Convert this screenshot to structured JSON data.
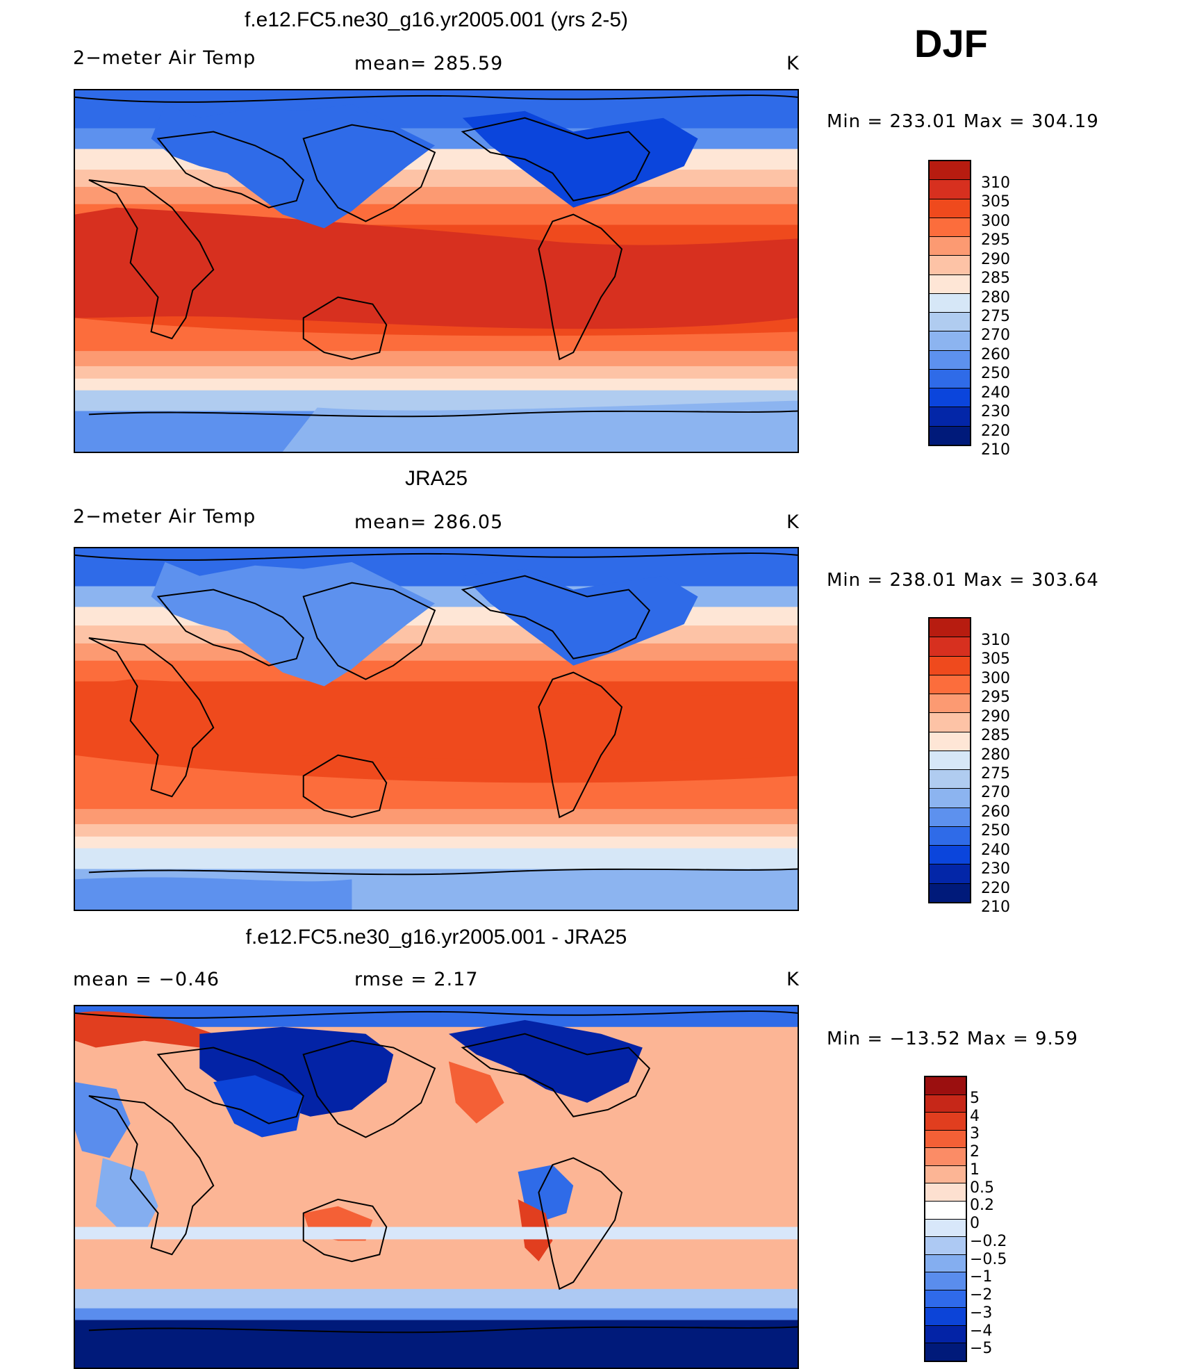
{
  "season": "DJF",
  "colors": {
    "temp_scale": [
      "#b71c10",
      "#d7301f",
      "#ef4a1d",
      "#fc6d3c",
      "#fc9a72",
      "#fdc3a6",
      "#fee6d6",
      "#d6e7f7",
      "#b0ccf0",
      "#8cb4f0",
      "#5d91ee",
      "#2f6be8",
      "#0b45dc",
      "#0326a8",
      "#001a7a"
    ],
    "diff_scale": [
      "#9b0f0f",
      "#c62718",
      "#e13e1f",
      "#f46036",
      "#fb8c66",
      "#fcb595",
      "#fde0d0",
      "#ffffff",
      "#d8e7fa",
      "#adc9f3",
      "#84aef0",
      "#5a8ded",
      "#2f6aea",
      "#0c44d8",
      "#0323a6",
      "#001a7a"
    ],
    "line": "#000000"
  },
  "panels": [
    {
      "title": "f.e12.FC5.ne30_g16.yr2005.001 (yrs 2-5)",
      "left_label": "2−meter Air Temp",
      "mid_label": "mean=  285.59",
      "units": "K",
      "minmax": "Min  =  233.01  Max  =  304.19",
      "colorbar_labels": [
        "310",
        "305",
        "300",
        "295",
        "290",
        "285",
        "280",
        "275",
        "270",
        "260",
        "250",
        "240",
        "230",
        "220",
        "210"
      ]
    },
    {
      "title": "JRA25",
      "left_label": "2−meter Air Temp",
      "mid_label": "mean=  286.05",
      "units": "K",
      "minmax": "Min  =  238.01  Max  =  303.64",
      "colorbar_labels": [
        "310",
        "305",
        "300",
        "295",
        "290",
        "285",
        "280",
        "275",
        "270",
        "260",
        "250",
        "240",
        "230",
        "220",
        "210"
      ]
    },
    {
      "title": "f.e12.FC5.ne30_g16.yr2005.001 - JRA25",
      "left_label": "mean  =     −0.46",
      "mid_label": "rmse  =     2.17",
      "units": "K",
      "minmax": "Min  =  −13.52  Max  =       9.59",
      "colorbar_labels": [
        "5",
        "4",
        "3",
        "2",
        "1",
        "0.5",
        "0.2",
        "0",
        "−0.2",
        "−0.5",
        "−1",
        "−2",
        "−3",
        "−4",
        "−5"
      ]
    }
  ]
}
